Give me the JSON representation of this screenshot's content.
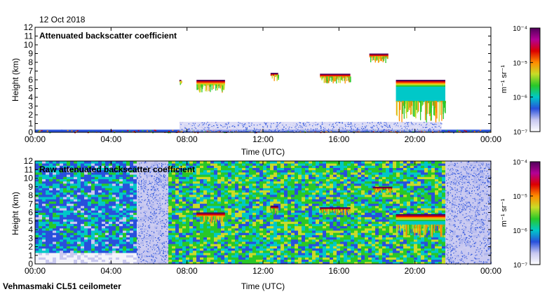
{
  "header": {
    "date": "12 Oct 2018"
  },
  "footer": {
    "instrument": "Vehmasmaki CL51 ceilometer"
  },
  "colorbar": {
    "unit_label": "m⁻¹ sr⁻¹",
    "ticks": [
      "10⁻⁴",
      "10⁻⁵",
      "10⁻⁶",
      "10⁻⁷"
    ],
    "tick_exponents": [
      -4,
      -5,
      -6,
      -7
    ],
    "colors": [
      "#ffffff",
      "#c8c8f0",
      "#2850dc",
      "#00c8c8",
      "#28c828",
      "#c8dc28",
      "#ff8c00",
      "#dc0000",
      "#b40096",
      "#50005a"
    ]
  },
  "chart_data": [
    {
      "type": "heatmap",
      "title": "Attenuated backscatter coefficient",
      "xlabel": "Time (UTC)",
      "ylabel": "Height (km)",
      "xlim": [
        0,
        24
      ],
      "ylim": [
        0,
        12
      ],
      "xticks": [
        "00:00",
        "04:00",
        "08:00",
        "12:00",
        "16:00",
        "20:00",
        "00:00"
      ],
      "xtick_values": [
        0,
        4,
        8,
        12,
        16,
        20,
        24
      ],
      "yticks": [
        0,
        1,
        2,
        3,
        4,
        5,
        6,
        7,
        8,
        9,
        10,
        11,
        12
      ],
      "features": [
        {
          "kind": "surface",
          "t0": 0,
          "t1": 24,
          "h0": 0,
          "h1": 0.3,
          "level": "high"
        },
        {
          "kind": "boundary-layer",
          "t0": 7.6,
          "t1": 21.4,
          "h0": 0.1,
          "h1": 1.2,
          "level": "low"
        },
        {
          "kind": "cloud",
          "t0": 7.6,
          "t1": 7.7,
          "h0": 5.8,
          "h1": 6.0,
          "level": "peak"
        },
        {
          "kind": "cloud",
          "t0": 8.5,
          "t1": 10.0,
          "h0": 5.4,
          "h1": 6.0,
          "level": "peak"
        },
        {
          "kind": "cloud",
          "t0": 12.4,
          "t1": 12.8,
          "h0": 6.5,
          "h1": 6.8,
          "level": "peak"
        },
        {
          "kind": "cloud",
          "t0": 15.0,
          "t1": 16.6,
          "h0": 6.3,
          "h1": 6.7,
          "level": "peak"
        },
        {
          "kind": "cloud",
          "t0": 17.6,
          "t1": 18.6,
          "h0": 8.6,
          "h1": 9.0,
          "level": "peak"
        },
        {
          "kind": "cloud",
          "t0": 19.0,
          "t1": 21.6,
          "h0": 3.5,
          "h1": 6.0,
          "level": "peak"
        }
      ]
    },
    {
      "type": "heatmap",
      "title": "Raw attenuated backscatter coefficient",
      "xlabel": "Time (UTC)",
      "ylabel": "Height (km)",
      "xlim": [
        0,
        24
      ],
      "ylim": [
        0,
        12
      ],
      "xticks": [
        "00:00",
        "04:00",
        "08:00",
        "12:00",
        "16:00",
        "20:00",
        "00:00"
      ],
      "xtick_values": [
        0,
        4,
        8,
        12,
        16,
        20,
        24
      ],
      "yticks": [
        0,
        1,
        2,
        3,
        4,
        5,
        6,
        7,
        8,
        9,
        10,
        11,
        12
      ],
      "features": [
        {
          "kind": "noise",
          "t0": 0,
          "t1": 24,
          "h0": 0,
          "h1": 12,
          "level": "mixed"
        },
        {
          "kind": "clear-gap",
          "t0": 5.4,
          "t1": 7.0,
          "h0": 0,
          "h1": 12,
          "level": "low"
        },
        {
          "kind": "clear-gap",
          "t0": 21.6,
          "t1": 24,
          "h0": 0,
          "h1": 12,
          "level": "low"
        },
        {
          "kind": "cloud",
          "t0": 8.5,
          "t1": 10.0,
          "h0": 5.5,
          "h1": 6.0,
          "level": "peak"
        },
        {
          "kind": "cloud",
          "t0": 12.4,
          "t1": 12.8,
          "h0": 6.4,
          "h1": 6.8,
          "level": "peak"
        },
        {
          "kind": "cloud",
          "t0": 15.0,
          "t1": 16.6,
          "h0": 6.3,
          "h1": 6.6,
          "level": "peak"
        },
        {
          "kind": "cloud",
          "t0": 17.8,
          "t1": 18.8,
          "h0": 8.7,
          "h1": 9.0,
          "level": "peak"
        },
        {
          "kind": "cloud",
          "t0": 19.0,
          "t1": 21.6,
          "h0": 4.5,
          "h1": 5.8,
          "level": "peak"
        }
      ]
    }
  ]
}
